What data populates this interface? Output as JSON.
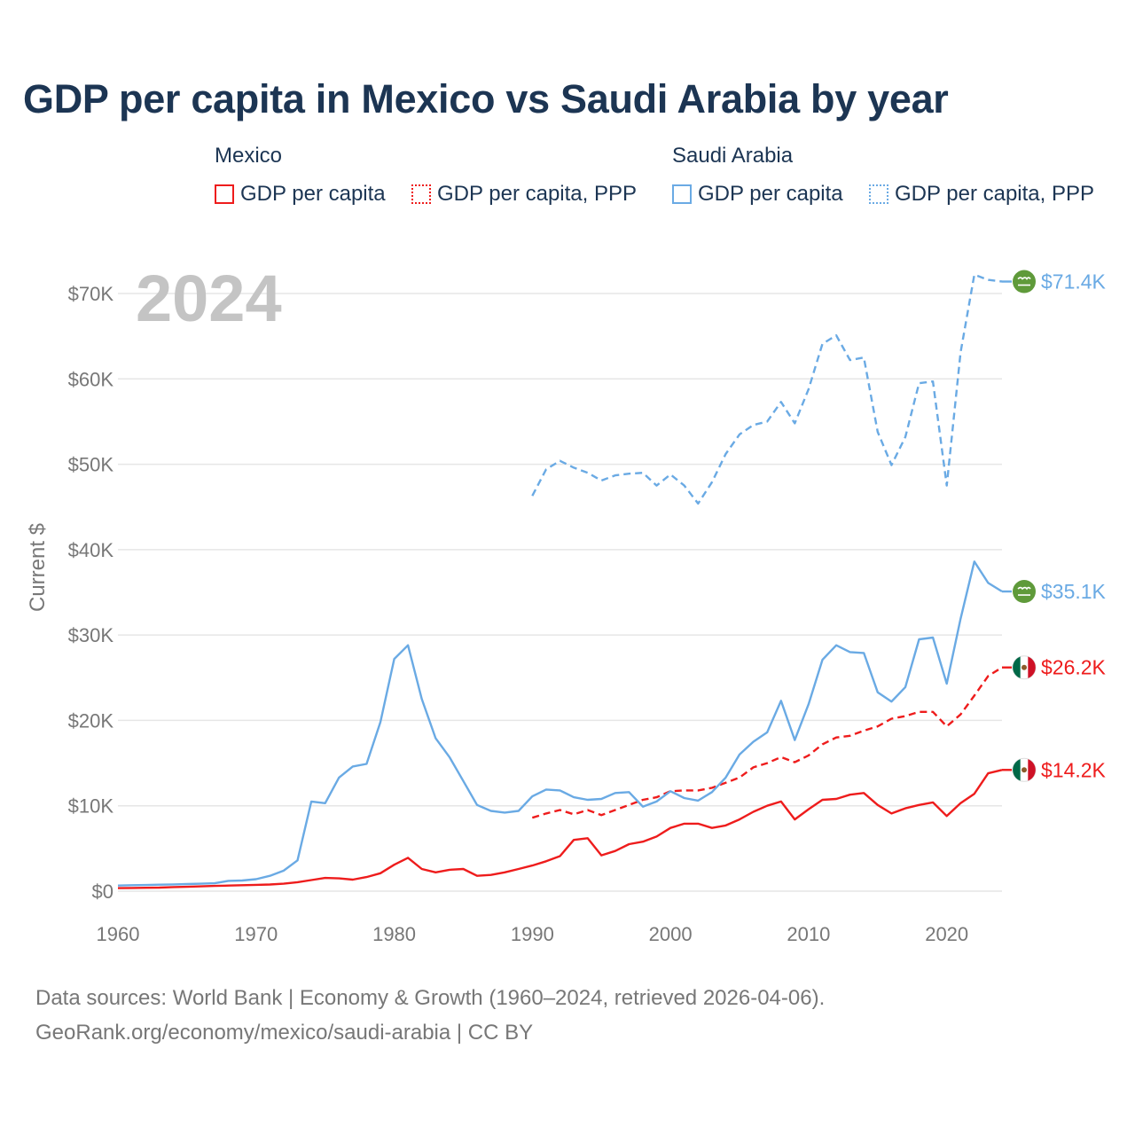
{
  "title": "GDP per capita in Mexico vs Saudi Arabia by year",
  "legend": {
    "mexico": {
      "label": "Mexico",
      "gdp": "GDP per capita",
      "ppp": "GDP per capita, PPP"
    },
    "saudi": {
      "label": "Saudi Arabia",
      "gdp": "GDP per capita",
      "ppp": "GDP per capita, PPP"
    }
  },
  "colors": {
    "mexico": "#ee1c1c",
    "saudi": "#6aaae4",
    "grid": "#e6e6e6",
    "axis_text": "#777777",
    "year_overlay": "#c4c4c4"
  },
  "icons": {
    "mexico": "mexico-flag-icon",
    "saudi": "saudi-arabia-flag-icon"
  },
  "source_lines": [
    "Data sources: World Bank | Economy & Growth (1960–2024, retrieved 2026-04-06).",
    "GeoRank.org/economy/mexico/saudi-arabia | CC BY"
  ],
  "chart_data": {
    "type": "line",
    "year_label": "2024",
    "ylabel": "Current $",
    "xlim": [
      1960,
      2024
    ],
    "ylim": [
      0,
      70000
    ],
    "x_ticks": [
      1960,
      1970,
      1980,
      1990,
      2000,
      2010,
      2020
    ],
    "y_ticks": [
      {
        "value": 0,
        "label": "$0"
      },
      {
        "value": 10000,
        "label": "$10K"
      },
      {
        "value": 20000,
        "label": "$20K"
      },
      {
        "value": 30000,
        "label": "$30K"
      },
      {
        "value": 40000,
        "label": "$40K"
      },
      {
        "value": 50000,
        "label": "$50K"
      },
      {
        "value": 60000,
        "label": "$60K"
      },
      {
        "value": 70000,
        "label": "$70K"
      }
    ],
    "series": [
      {
        "name": "Mexico GDP per capita",
        "country": "mexico",
        "dashed": false,
        "end_label": "$14.2K",
        "x": [
          1960,
          1961,
          1962,
          1963,
          1964,
          1965,
          1966,
          1967,
          1968,
          1969,
          1970,
          1971,
          1972,
          1973,
          1974,
          1975,
          1976,
          1977,
          1978,
          1979,
          1980,
          1981,
          1982,
          1983,
          1984,
          1985,
          1986,
          1987,
          1988,
          1989,
          1990,
          1991,
          1992,
          1993,
          1994,
          1995,
          1996,
          1997,
          1998,
          1999,
          2000,
          2001,
          2002,
          2003,
          2004,
          2005,
          2006,
          2007,
          2008,
          2009,
          2010,
          2011,
          2012,
          2013,
          2014,
          2015,
          2016,
          2017,
          2018,
          2019,
          2020,
          2021,
          2022,
          2023,
          2024
        ],
        "y": [
          350,
          370,
          390,
          420,
          480,
          510,
          560,
          610,
          650,
          700,
          740,
          780,
          870,
          1050,
          1300,
          1550,
          1500,
          1350,
          1650,
          2100,
          3100,
          3900,
          2600,
          2200,
          2500,
          2600,
          1800,
          1900,
          2200,
          2600,
          3000,
          3500,
          4100,
          6000,
          6200,
          4200,
          4700,
          5500,
          5800,
          6400,
          7400,
          7900,
          7900,
          7400,
          7700,
          8400,
          9300,
          10000,
          10500,
          8400,
          9600,
          10700,
          10800,
          11300,
          11500,
          10100,
          9100,
          9700,
          10100,
          10400,
          8800,
          10300,
          11400,
          13800,
          14200
        ]
      },
      {
        "name": "Mexico GDP per capita, PPP",
        "country": "mexico",
        "dashed": true,
        "end_label": "$26.2K",
        "x": [
          1990,
          1991,
          1992,
          1993,
          1994,
          1995,
          1996,
          1997,
          1998,
          1999,
          2000,
          2001,
          2002,
          2003,
          2004,
          2005,
          2006,
          2007,
          2008,
          2009,
          2010,
          2011,
          2012,
          2013,
          2014,
          2015,
          2016,
          2017,
          2018,
          2019,
          2020,
          2021,
          2022,
          2023,
          2024
        ],
        "y": [
          8600,
          9100,
          9500,
          9000,
          9500,
          8900,
          9500,
          10100,
          10700,
          11000,
          11700,
          11800,
          11800,
          12100,
          12700,
          13300,
          14500,
          15000,
          15700,
          15100,
          15900,
          17200,
          18000,
          18200,
          18800,
          19300,
          20200,
          20500,
          21000,
          21000,
          19300,
          20700,
          22900,
          25200,
          26200
        ]
      },
      {
        "name": "Saudi Arabia GDP per capita",
        "country": "saudi",
        "dashed": false,
        "end_label": "$35.1K",
        "x": [
          1960,
          1961,
          1962,
          1963,
          1964,
          1965,
          1966,
          1967,
          1968,
          1969,
          1970,
          1971,
          1972,
          1973,
          1974,
          1975,
          1976,
          1977,
          1978,
          1979,
          1980,
          1981,
          1982,
          1983,
          1984,
          1985,
          1986,
          1987,
          1988,
          1989,
          1990,
          1991,
          1992,
          1993,
          1994,
          1995,
          1996,
          1997,
          1998,
          1999,
          2000,
          2001,
          2002,
          2003,
          2004,
          2005,
          2006,
          2007,
          2008,
          2009,
          2010,
          2011,
          2012,
          2013,
          2014,
          2015,
          2016,
          2017,
          2018,
          2019,
          2020,
          2021,
          2022,
          2023,
          2024
        ],
        "y": [
          650,
          700,
          720,
          760,
          790,
          830,
          870,
          920,
          1200,
          1250,
          1400,
          1800,
          2400,
          3600,
          10500,
          10300,
          13300,
          14600,
          14900,
          19800,
          27200,
          28800,
          22500,
          17900,
          15700,
          12900,
          10100,
          9400,
          9200,
          9400,
          11100,
          11900,
          11800,
          11000,
          10700,
          10800,
          11500,
          11600,
          9900,
          10500,
          11700,
          10900,
          10600,
          11600,
          13300,
          16000,
          17500,
          18600,
          22300,
          17700,
          21900,
          27100,
          28800,
          28000,
          27900,
          23300,
          22200,
          23900,
          29500,
          29700,
          24300,
          31900,
          38600,
          36100,
          35100
        ]
      },
      {
        "name": "Saudi Arabia GDP per capita, PPP",
        "country": "saudi",
        "dashed": true,
        "end_label": "$71.4K",
        "x": [
          1990,
          1991,
          1992,
          1993,
          1994,
          1995,
          1996,
          1997,
          1998,
          1999,
          2000,
          2001,
          2002,
          2003,
          2004,
          2005,
          2006,
          2007,
          2008,
          2009,
          2010,
          2011,
          2012,
          2013,
          2014,
          2015,
          2016,
          2017,
          2018,
          2019,
          2020,
          2021,
          2022,
          2023,
          2024
        ],
        "y": [
          46300,
          49400,
          50400,
          49600,
          49000,
          48100,
          48700,
          48900,
          49000,
          47500,
          48800,
          47500,
          45400,
          47900,
          51200,
          53500,
          54600,
          55000,
          57300,
          54800,
          58800,
          64100,
          65100,
          62200,
          62500,
          53800,
          49900,
          53200,
          59500,
          59700,
          47500,
          63100,
          72200,
          71600,
          71400
        ]
      }
    ]
  }
}
